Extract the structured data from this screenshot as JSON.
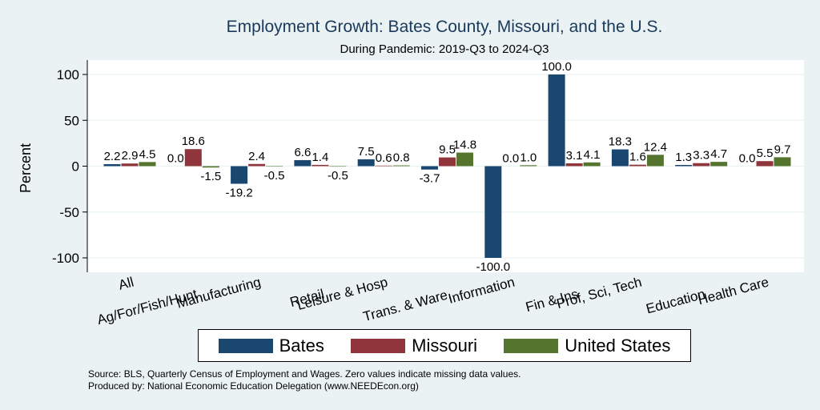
{
  "chart_data": {
    "type": "bar",
    "title": "Employment Growth: Bates County, Missouri, and the U.S.",
    "subtitle": "During Pandemic: 2019-Q3 to 2024-Q3",
    "ylabel": "Percent",
    "xlabel": "",
    "ylim": [
      -115,
      115
    ],
    "yticks": [
      100,
      50,
      0,
      -50,
      -100
    ],
    "yticks_text": [
      "100",
      "50",
      "0",
      "-50",
      "-100"
    ],
    "categories": [
      "All",
      "Ag/For/Fish/Hunt",
      "Manufacturing",
      "Retail",
      "Leisure & Hosp",
      "Trans. & Ware.",
      "Information",
      "Fin & Ins",
      "Prof, Sci, Tech",
      "Education",
      "Health Care"
    ],
    "series": [
      {
        "name": "Bates",
        "color": "#1a476f",
        "values": [
          2.2,
          0.0,
          -19.2,
          6.6,
          7.5,
          -3.7,
          -100.0,
          100.0,
          18.3,
          1.3,
          0.0
        ],
        "labels": [
          "2.2",
          "0.0",
          "-19.2",
          "6.6",
          "7.5",
          "-3.7",
          "-100.0",
          "100.0",
          "18.3",
          "1.3",
          "0.0"
        ]
      },
      {
        "name": "Missouri",
        "color": "#90353b",
        "values": [
          2.9,
          18.6,
          2.4,
          1.4,
          0.6,
          9.5,
          0.0,
          3.1,
          1.6,
          3.3,
          5.5
        ],
        "labels": [
          "2.9",
          "18.6",
          "2.4",
          "1.4",
          "0.6",
          "9.5",
          "0.0",
          "3.1",
          "1.6",
          "3.3",
          "5.5"
        ]
      },
      {
        "name": "United States",
        "color": "#55752f",
        "values": [
          4.5,
          -1.5,
          -0.5,
          -0.5,
          0.8,
          14.8,
          1.0,
          4.1,
          12.4,
          4.7,
          9.7
        ],
        "labels": [
          "4.5",
          "-1.5",
          "-0.5",
          "-0.5",
          "0.8",
          "14.8",
          "1.0",
          "4.1",
          "12.4",
          "4.7",
          "9.7"
        ]
      }
    ],
    "legend": {
      "position": "bottom"
    },
    "grid": true
  },
  "source_note": "Source: BLS, Quarterly Census of Employment and Wages. Zero values indicate missing data values.",
  "produced_note": "Produced by: National Economic Education Delegation (www.NEEDEcon.org)"
}
